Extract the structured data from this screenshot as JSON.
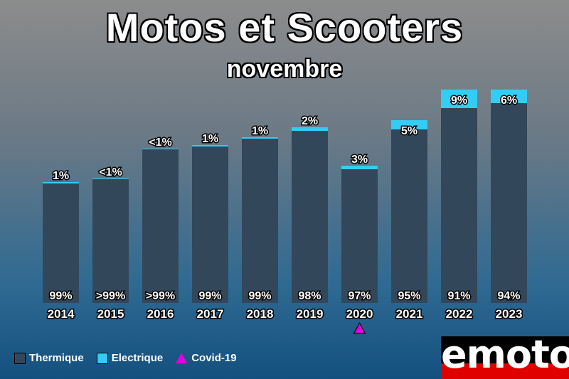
{
  "title": "Motos et Scooters",
  "subtitle": "novembre",
  "colors": {
    "thermique": "#33475b",
    "electrique": "#33ccf5",
    "covid": "#e000e0",
    "label_text": "#ffffff"
  },
  "legend": {
    "thermique": "Thermique",
    "electrique": "Electrique",
    "covid": "Covid-19"
  },
  "logo": {
    "text": "emoto"
  },
  "chart_data": {
    "type": "bar",
    "stacked": true,
    "categories": [
      "2014",
      "2015",
      "2016",
      "2017",
      "2018",
      "2019",
      "2020",
      "2021",
      "2022",
      "2023"
    ],
    "series": [
      {
        "name": "Thermique",
        "values": [
          168,
          174,
          216,
          220,
          231,
          242,
          188,
          244,
          274,
          281
        ],
        "labels": [
          "99%",
          ">99%",
          ">99%",
          "99%",
          "99%",
          "98%",
          "97%",
          "95%",
          "91%",
          "94%"
        ]
      },
      {
        "name": "Electrique",
        "values": [
          2,
          1,
          1,
          2,
          2,
          5,
          5,
          13,
          26,
          19
        ],
        "labels": [
          "1%",
          "<1%",
          "<1%",
          "1%",
          "1%",
          "2%",
          "3%",
          "5%",
          "9%",
          "6%"
        ]
      }
    ],
    "annotations": [
      {
        "category": "2020",
        "marker": "triangle",
        "label": "Covid-19"
      }
    ],
    "ylim": [
      0,
      300
    ],
    "grid": false,
    "legend_position": "bottom-left"
  }
}
